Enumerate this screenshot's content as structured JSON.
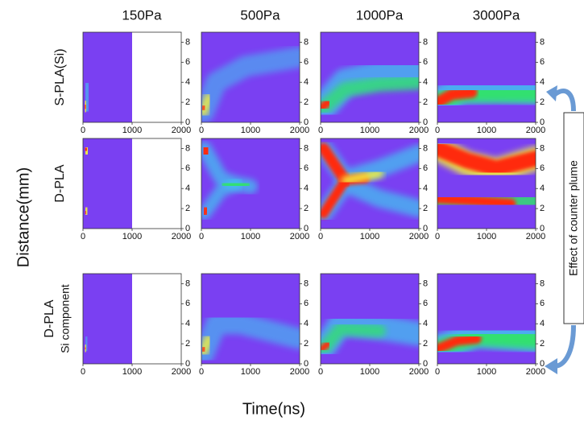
{
  "columns": [
    "150Pa",
    "500Pa",
    "1000Pa",
    "3000Pa"
  ],
  "rows": [
    {
      "label": "S-PLA(Si)"
    },
    {
      "label": "D-PLA"
    },
    {
      "label": "D-PLA",
      "sublabel": "Si component"
    }
  ],
  "x_axis": {
    "label": "Time(ns)",
    "ticks": [
      0,
      1000,
      2000
    ]
  },
  "y_axis": {
    "label": "Distance(mm)",
    "ticks": [
      0,
      2,
      4,
      6,
      8
    ]
  },
  "annotation": "Effect of counter plume"
}
